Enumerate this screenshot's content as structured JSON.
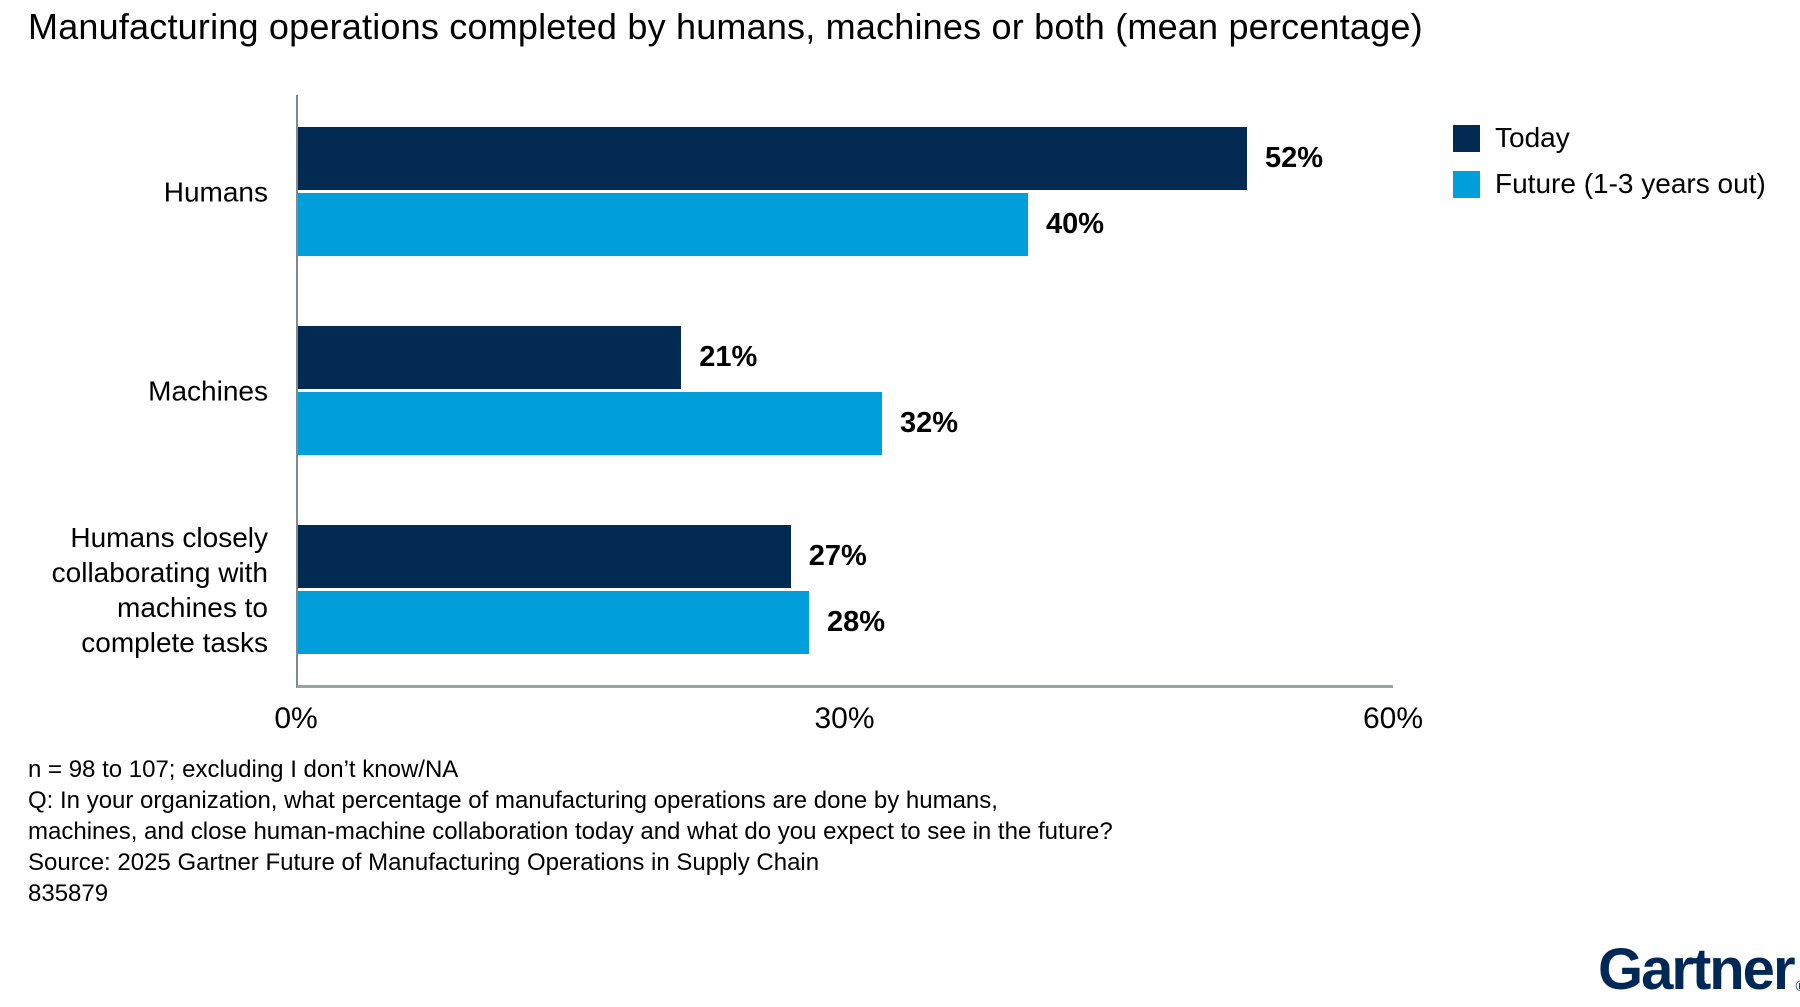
{
  "title": "Manufacturing operations completed by humans, machines or both (mean percentage)",
  "chart_data": {
    "type": "bar",
    "orientation": "horizontal",
    "title": "Manufacturing operations completed by humans, machines or both (mean percentage)",
    "categories": [
      "Humans",
      "Machines",
      "Humans closely collaborating with machines to complete tasks"
    ],
    "category_label_lines": [
      [
        "Humans"
      ],
      [
        "Machines"
      ],
      [
        "Humans closely",
        "collaborating with",
        "machines to",
        "complete tasks"
      ]
    ],
    "series": [
      {
        "name": "Today",
        "values": [
          52,
          21,
          27
        ],
        "color": "#032a52"
      },
      {
        "name": "Future (1-3 years out)",
        "values": [
          40,
          32,
          28
        ],
        "color": "#009edb"
      }
    ],
    "value_suffix": "%",
    "xlim": [
      0,
      60
    ],
    "ticks": [
      {
        "label": "0%",
        "value": 0
      },
      {
        "label": "30%",
        "value": 30
      },
      {
        "label": "60%",
        "value": 60
      }
    ],
    "legend_position": "top-right",
    "grid": false
  },
  "footnotes": [
    "n = 98 to 107; excluding I don’t know/NA",
    "Q: In your organization, what percentage of manufacturing operations are done by humans,",
    "machines, and close human-machine collaboration today and what do you expect to see in the future?",
    "Source: 2025 Gartner Future of Manufacturing Operations in Supply Chain",
    "835879"
  ],
  "logo": {
    "text": "Gartner",
    "registered_mark": "®",
    "color": "#002856"
  }
}
